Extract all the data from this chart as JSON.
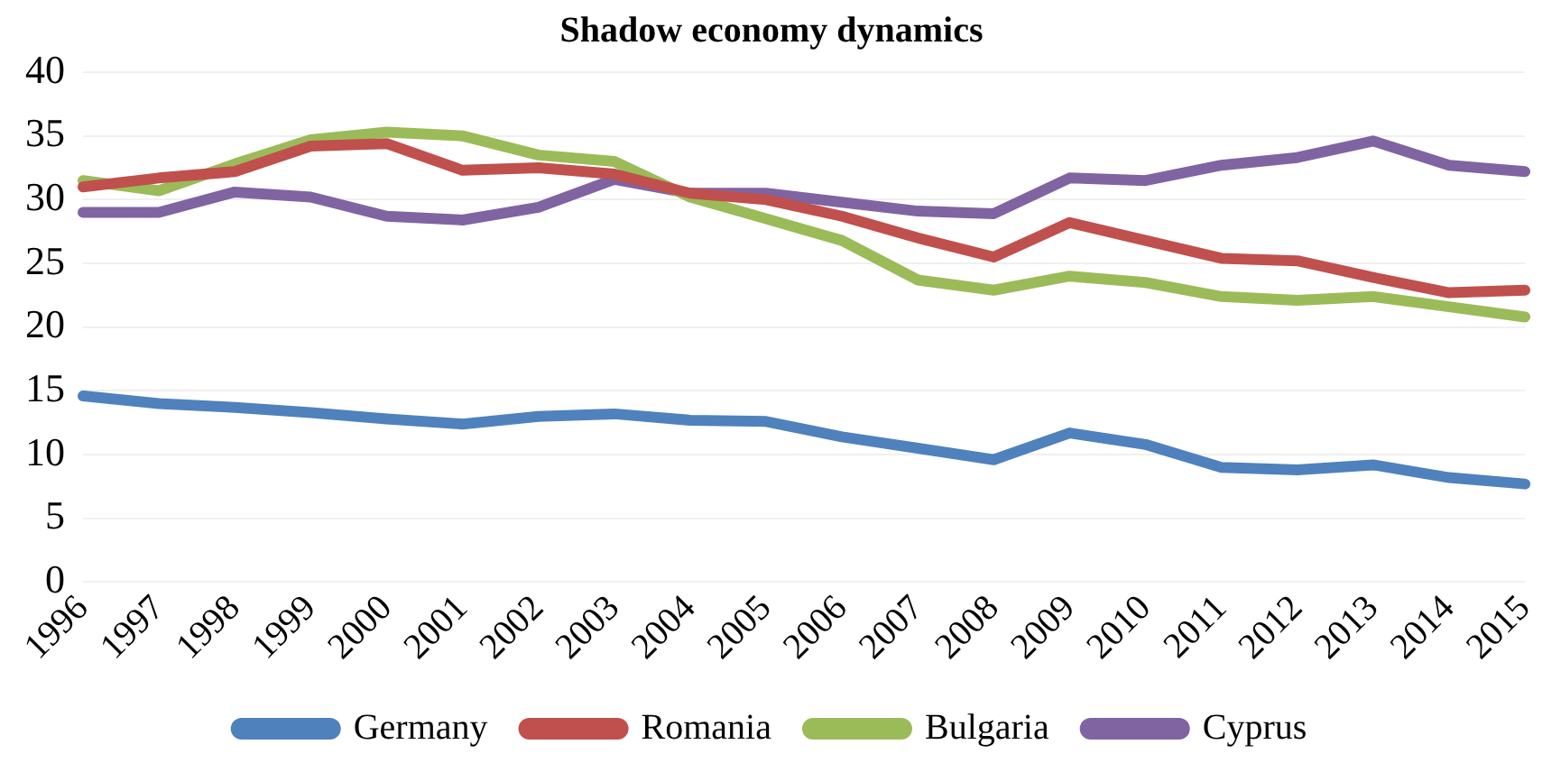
{
  "chart_data": {
    "type": "line",
    "title": "Shadow economy dynamics",
    "categories": [
      "1996",
      "1997",
      "1998",
      "1999",
      "2000",
      "2001",
      "2002",
      "2003",
      "2004",
      "2005",
      "2006",
      "2007",
      "2008",
      "2009",
      "2010",
      "2011",
      "2012",
      "2013",
      "2014",
      "2015"
    ],
    "series": [
      {
        "name": "Germany",
        "color": "#4f81bd",
        "values": [
          14.6,
          14.0,
          13.7,
          13.3,
          12.8,
          12.4,
          13.0,
          13.2,
          12.7,
          12.6,
          11.4,
          10.5,
          9.6,
          11.7,
          10.8,
          9.0,
          8.8,
          9.2,
          8.2,
          7.7
        ]
      },
      {
        "name": "Romania",
        "color": "#c0504d",
        "values": [
          31.0,
          31.7,
          32.2,
          34.2,
          34.4,
          32.3,
          32.5,
          32.0,
          30.5,
          30.0,
          28.7,
          27.0,
          25.5,
          28.2,
          26.8,
          25.4,
          25.2,
          23.9,
          22.7,
          22.9
        ]
      },
      {
        "name": "Bulgaria",
        "color": "#9bbb59",
        "values": [
          31.5,
          30.7,
          32.8,
          34.7,
          35.3,
          35.0,
          33.5,
          33.0,
          30.2,
          28.5,
          26.8,
          23.7,
          22.9,
          24.0,
          23.5,
          22.4,
          22.1,
          22.4,
          21.6,
          20.8
        ]
      },
      {
        "name": "Cyprus",
        "color": "#8064a2",
        "values": [
          29.0,
          29.0,
          30.6,
          30.2,
          28.7,
          28.4,
          29.4,
          31.6,
          30.5,
          30.5,
          29.8,
          29.1,
          28.9,
          31.7,
          31.5,
          32.7,
          33.3,
          34.6,
          32.7,
          32.2
        ]
      }
    ],
    "ylim": [
      0,
      40
    ],
    "yticks": [
      0,
      5,
      10,
      15,
      20,
      25,
      30,
      35,
      40
    ],
    "grid": "y",
    "legend": "bottom",
    "marker": "none",
    "line_style": "solid"
  }
}
